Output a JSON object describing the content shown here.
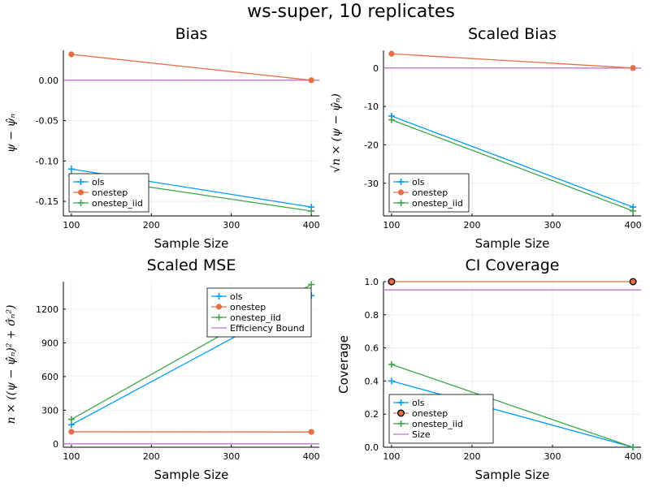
{
  "suptitle": "ws-super, 10 replicates",
  "colors": {
    "ols": "#009afa",
    "onestep": "#e26f46",
    "onestep_iid": "#3ea44e",
    "bound": "#c271d2"
  },
  "chart_data": [
    {
      "type": "line",
      "title": "Bias",
      "xlabel": "Sample Size",
      "ylabel": "ψ − ψ̂ₙ",
      "x": [
        100,
        400
      ],
      "xlim": [
        90,
        410
      ],
      "ylim": [
        -0.168,
        0.037
      ],
      "xticks": [
        100,
        200,
        300,
        400
      ],
      "yticks": [
        -0.15,
        -0.1,
        -0.05,
        0.0
      ],
      "ytick_labels": [
        "-0.15",
        "-0.10",
        "-0.05",
        "0.00"
      ],
      "series": [
        {
          "name": "ols",
          "key": "ols",
          "marker": "plus",
          "values": [
            -0.11,
            -0.157
          ]
        },
        {
          "name": "onestep",
          "key": "onestep",
          "marker": "circle",
          "values": [
            0.032,
            0.0
          ]
        },
        {
          "name": "onestep_iid",
          "key": "onestep_iid",
          "marker": "plus",
          "values": [
            -0.118,
            -0.162
          ]
        }
      ],
      "hline": {
        "key": "bound",
        "y": 0.0
      },
      "legend": "bottom-left"
    },
    {
      "type": "line",
      "title": "Scaled Bias",
      "xlabel": "Sample Size",
      "ylabel": "√n × (ψ − ψ̂ₙ)",
      "x": [
        100,
        400
      ],
      "xlim": [
        90,
        410
      ],
      "ylim": [
        -38.5,
        4.6
      ],
      "xticks": [
        100,
        200,
        300,
        400
      ],
      "yticks": [
        -30,
        -20,
        -10,
        0
      ],
      "ytick_labels": [
        "-30",
        "-20",
        "-10",
        "0"
      ],
      "series": [
        {
          "name": "ols",
          "key": "ols",
          "marker": "plus",
          "values": [
            -12.5,
            -36.2
          ]
        },
        {
          "name": "onestep",
          "key": "onestep",
          "marker": "circle",
          "values": [
            3.7,
            0.0
          ]
        },
        {
          "name": "onestep_iid",
          "key": "onestep_iid",
          "marker": "plus",
          "values": [
            -13.5,
            -37.2
          ]
        }
      ],
      "hline": {
        "key": "bound",
        "y": 0.0
      },
      "legend": "bottom-left"
    },
    {
      "type": "line",
      "title": "Scaled MSE",
      "xlabel": "Sample Size",
      "ylabel": "n × ((ψ − ψ̂ₙ)² + σ̂ₙ²)",
      "x": [
        100,
        400
      ],
      "xlim": [
        90,
        410
      ],
      "ylim": [
        -30,
        1445
      ],
      "xticks": [
        100,
        200,
        300,
        400
      ],
      "yticks": [
        0,
        300,
        600,
        900,
        1200
      ],
      "ytick_labels": [
        "0",
        "300",
        "600",
        "900",
        "1200"
      ],
      "series": [
        {
          "name": "ols",
          "key": "ols",
          "marker": "plus",
          "values": [
            170,
            1320
          ]
        },
        {
          "name": "onestep",
          "key": "onestep",
          "marker": "circle",
          "values": [
            108,
            106
          ]
        },
        {
          "name": "onestep_iid",
          "key": "onestep_iid",
          "marker": "plus",
          "values": [
            218,
            1420
          ]
        }
      ],
      "hline": {
        "name": "Efficiency Bound",
        "key": "bound",
        "y": 0.0
      },
      "legend": "top-right"
    },
    {
      "type": "line",
      "title": "CI Coverage",
      "xlabel": "Sample Size",
      "ylabel": "Coverage",
      "x": [
        100,
        400
      ],
      "xlim": [
        90,
        410
      ],
      "ylim": [
        0.0,
        1.0
      ],
      "xticks": [
        100,
        200,
        300,
        400
      ],
      "yticks": [
        0.0,
        0.2,
        0.4,
        0.6,
        0.8,
        1.0
      ],
      "ytick_labels": [
        "0.0",
        "0.2",
        "0.4",
        "0.6",
        "0.8",
        "1.0"
      ],
      "series": [
        {
          "name": "ols",
          "key": "ols",
          "marker": "plus",
          "values": [
            0.4,
            0.0
          ]
        },
        {
          "name": "onestep",
          "key": "onestep",
          "marker": "circle-dark",
          "values": [
            1.0,
            1.0
          ]
        },
        {
          "name": "onestep_iid",
          "key": "onestep_iid",
          "marker": "plus",
          "values": [
            0.5,
            0.0
          ]
        }
      ],
      "hline": {
        "name": "Size",
        "key": "bound",
        "y": 0.95
      },
      "legend": "bottom-left"
    }
  ]
}
